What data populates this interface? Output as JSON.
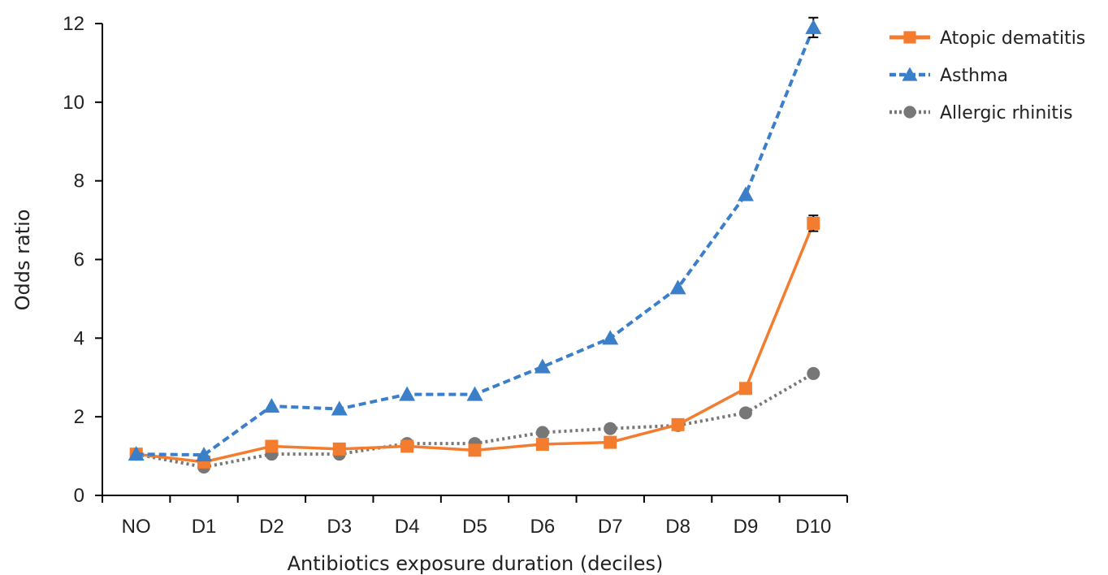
{
  "chart_data": {
    "type": "line",
    "title": "",
    "xlabel": "Antibiotics exposure duration (deciles)",
    "ylabel": "Odds ratio",
    "categories": [
      "NO",
      "D1",
      "D2",
      "D3",
      "D4",
      "D5",
      "D6",
      "D7",
      "D8",
      "D9",
      "D10"
    ],
    "yticks": [
      "0",
      "2",
      "4",
      "6",
      "8",
      "10",
      "12"
    ],
    "ylim": [
      0,
      12
    ],
    "grid": false,
    "legend_position": "top-right",
    "series": [
      {
        "name": "Atopic dematitis",
        "color": "#F47C2F",
        "line_style": "solid",
        "marker": "square",
        "values": [
          1.05,
          0.85,
          1.25,
          1.18,
          1.25,
          1.15,
          1.3,
          1.35,
          1.8,
          2.72,
          6.92
        ],
        "error": [
          0,
          0,
          0,
          0,
          0,
          0,
          0,
          0,
          0,
          0,
          0.2
        ]
      },
      {
        "name": "Asthma",
        "color": "#3A7FC8",
        "line_style": "dashed",
        "marker": "triangle",
        "values": [
          1.05,
          1.03,
          2.27,
          2.2,
          2.57,
          2.57,
          3.27,
          4.0,
          5.28,
          7.65,
          11.9
        ],
        "error": [
          0,
          0,
          0,
          0,
          0,
          0,
          0,
          0,
          0,
          0,
          0.25
        ]
      },
      {
        "name": "Allergic rhinitis",
        "color": "#777777",
        "line_style": "dotted",
        "marker": "circle",
        "values": [
          1.05,
          0.72,
          1.05,
          1.05,
          1.32,
          1.32,
          1.6,
          1.7,
          1.78,
          2.1,
          3.1
        ],
        "error": [
          0,
          0,
          0,
          0,
          0,
          0,
          0,
          0,
          0,
          0,
          0
        ]
      }
    ]
  }
}
